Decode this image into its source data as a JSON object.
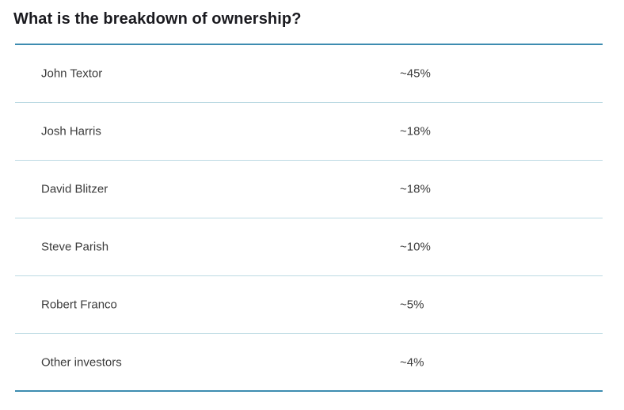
{
  "title": "What is the breakdown of ownership?",
  "colors": {
    "title_text": "#1a1a1f",
    "row_text": "#3b3b3b",
    "dark_divider": "#3d8cb0",
    "light_divider": "#bcdae3",
    "background": "#ffffff"
  },
  "table": {
    "rows": [
      {
        "name": "John Textor",
        "share": "~45%"
      },
      {
        "name": "Josh Harris",
        "share": "~18%"
      },
      {
        "name": "David Blitzer",
        "share": "~18%"
      },
      {
        "name": "Steve Parish",
        "share": "~10%"
      },
      {
        "name": "Robert Franco",
        "share": "~5%"
      },
      {
        "name": "Other investors",
        "share": "~4%"
      }
    ]
  }
}
